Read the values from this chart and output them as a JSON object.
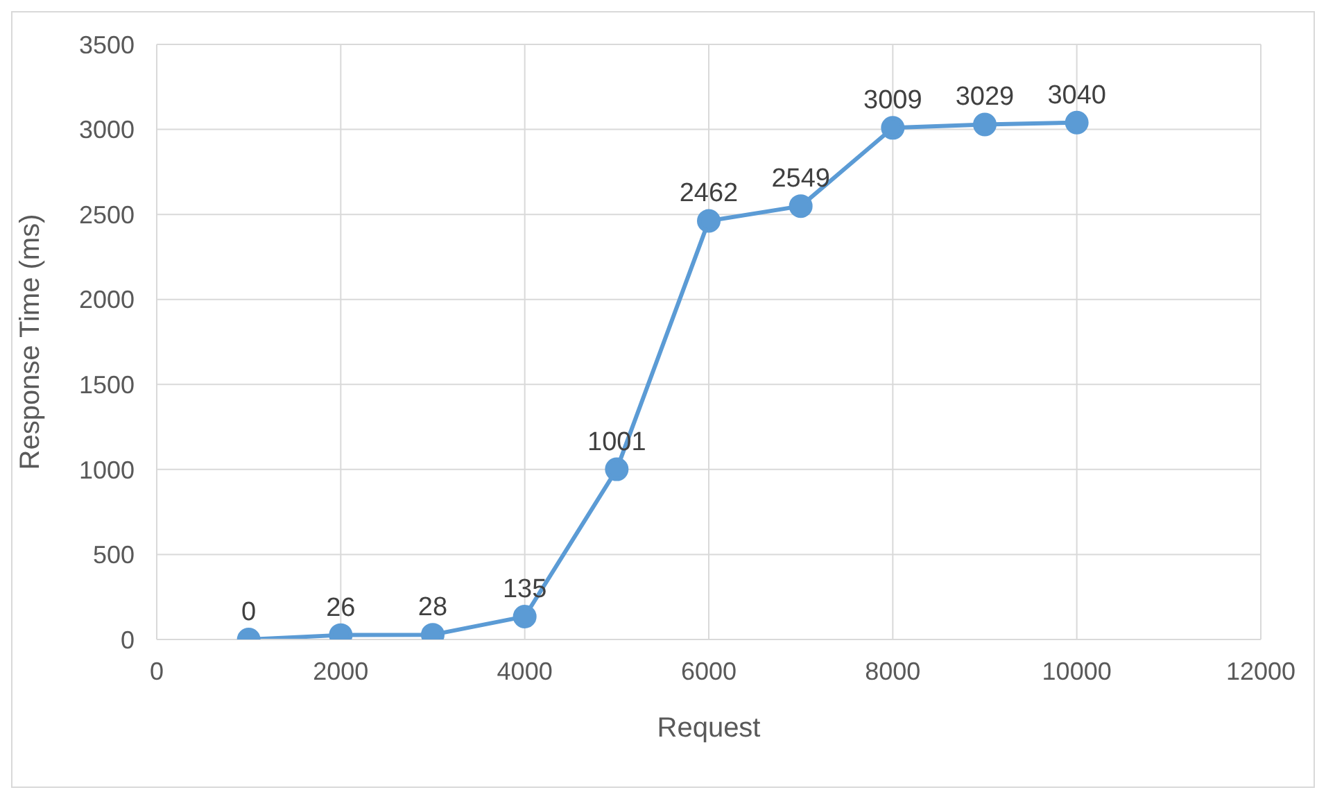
{
  "chart_data": {
    "type": "line",
    "xlabel": "Request",
    "ylabel": "Response Time (ms)",
    "x": [
      1000,
      2000,
      3000,
      4000,
      5000,
      6000,
      7000,
      8000,
      9000,
      10000
    ],
    "series": [
      {
        "color": "#5b9bd5",
        "values": [
          0,
          26,
          28,
          135,
          1001,
          2462,
          2549,
          3009,
          3029,
          3040
        ]
      }
    ],
    "xlim": [
      0,
      12000
    ],
    "xticks": [
      0,
      2000,
      4000,
      6000,
      8000,
      10000,
      12000
    ],
    "ylim": [
      0,
      3500
    ],
    "yticks": [
      0,
      500,
      1000,
      1500,
      2000,
      2500,
      3000,
      3500
    ],
    "grid": true,
    "marker": "circle",
    "line_style": "solid",
    "data_labels": true,
    "legend": false
  }
}
